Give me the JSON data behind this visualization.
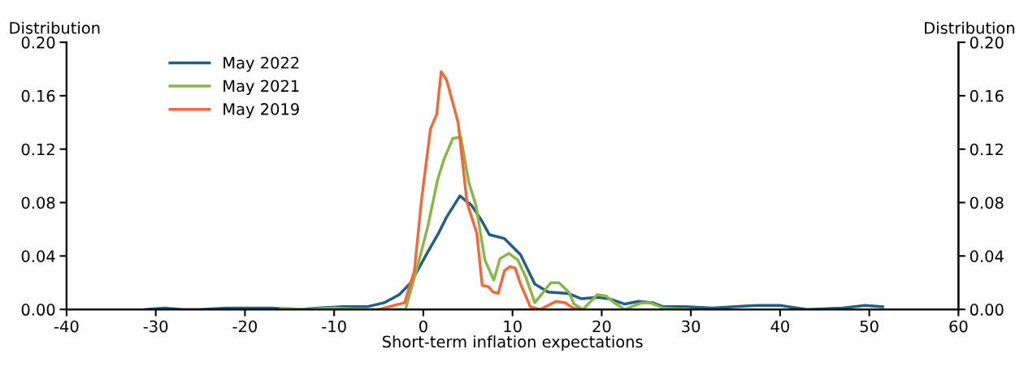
{
  "chart_data": {
    "type": "line",
    "xlabel": "Short-term inflation expectations",
    "ylabel": "Distribution",
    "y2label": "Distribution",
    "xlim": [
      -40,
      60
    ],
    "xticks": [
      -40,
      -30,
      -20,
      -10,
      0,
      10,
      20,
      30,
      40,
      50,
      60
    ],
    "ylim": [
      0,
      0.2
    ],
    "yticks": [
      {
        "value": 0,
        "label": "0.00"
      },
      {
        "value": 0.04,
        "label": "0.04"
      },
      {
        "value": 0.08,
        "label": "0.08"
      },
      {
        "value": 0.12,
        "label": "0.12"
      },
      {
        "value": 0.16,
        "label": "0.16"
      },
      {
        "value": 0.2,
        "label": "0.20"
      }
    ],
    "y2lim": [
      0,
      0.2
    ],
    "y2ticks": [
      {
        "value": 0,
        "label": "0.00"
      },
      {
        "value": 0.04,
        "label": "0.04"
      },
      {
        "value": 0.08,
        "label": "0.08"
      },
      {
        "value": 0.12,
        "label": "0.12"
      },
      {
        "value": 0.16,
        "label": "0.16"
      },
      {
        "value": 0.2,
        "label": "0.20"
      }
    ],
    "grid": false,
    "legend": "top left",
    "marker": "none",
    "line_style": "solid",
    "series": [
      {
        "name": "May 2022",
        "color": "#235f80",
        "x": [
          -31.2,
          -29,
          -27,
          -25,
          -22,
          -20,
          -17,
          -14,
          -11.8,
          -9,
          -6.3,
          -4.4,
          -2.7,
          -1.4,
          0.5,
          1.7,
          2.6,
          4.1,
          5.4,
          6.5,
          7.4,
          9.1,
          10.9,
          12.5,
          14.0,
          16.2,
          17.7,
          19.5,
          20.8,
          22.6,
          24.1,
          25.7,
          26.9,
          29.4,
          32.4,
          34.9,
          37.4,
          40,
          43,
          47,
          49.5,
          51.5
        ],
        "values": [
          0.0,
          0.001,
          0.0,
          0.0,
          0.001,
          0.001,
          0.001,
          0.0,
          0.001,
          0.002,
          0.002,
          0.005,
          0.011,
          0.02,
          0.043,
          0.057,
          0.069,
          0.085,
          0.078,
          0.067,
          0.056,
          0.053,
          0.041,
          0.019,
          0.013,
          0.012,
          0.008,
          0.009,
          0.008,
          0.004,
          0.006,
          0.005,
          0.002,
          0.002,
          0.001,
          0.002,
          0.003,
          0.003,
          0.0,
          0.001,
          0.003,
          0.002
        ]
      },
      {
        "name": "May 2021",
        "color": "#8ab54a",
        "x": [
          -16,
          -13,
          -10,
          -7,
          -4,
          -2.0,
          -0.7,
          0.5,
          1.6,
          2.3,
          3.3,
          4.2,
          5.1,
          5.9,
          6.9,
          7.9,
          8.6,
          9.6,
          10.6,
          11.5,
          12.5,
          14.3,
          15.2,
          16.3,
          16.9,
          17.9,
          19.5,
          20.5,
          21.4,
          22.6,
          24.5,
          25.4,
          26.9,
          29.1
        ],
        "values": [
          0.001,
          0.0,
          0.001,
          0.0,
          0.0,
          0.0,
          0.031,
          0.062,
          0.097,
          0.112,
          0.128,
          0.129,
          0.095,
          0.078,
          0.037,
          0.022,
          0.038,
          0.042,
          0.037,
          0.024,
          0.005,
          0.02,
          0.02,
          0.013,
          0.004,
          0.0,
          0.011,
          0.01,
          0.005,
          0.0,
          0.005,
          0.005,
          0.001,
          0.0
        ]
      },
      {
        "name": "May 2019",
        "color": "#ee6a3c",
        "x": [
          -5,
          -2.1,
          -1.0,
          -0.2,
          0.8,
          1.5,
          2.0,
          2.6,
          3.9,
          4.9,
          6.0,
          6.6,
          7.3,
          7.8,
          8.4,
          9.1,
          9.7,
          10.3,
          10.9,
          12.0,
          13.1,
          14.9,
          15.9,
          16.8,
          17.7
        ],
        "values": [
          0.0,
          0.005,
          0.029,
          0.082,
          0.135,
          0.146,
          0.178,
          0.172,
          0.14,
          0.08,
          0.057,
          0.018,
          0.017,
          0.013,
          0.012,
          0.029,
          0.032,
          0.031,
          0.019,
          0.002,
          0.0,
          0.006,
          0.005,
          0.001,
          0.0
        ]
      }
    ]
  }
}
